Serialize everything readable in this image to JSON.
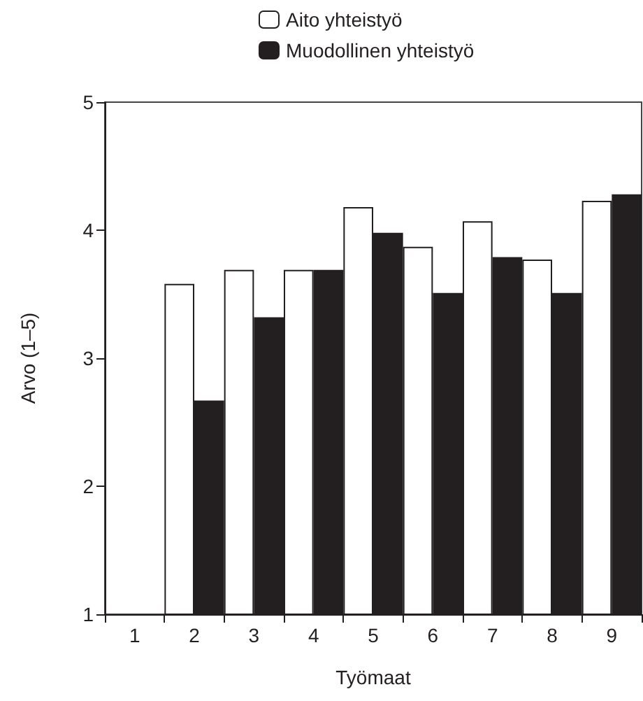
{
  "chart_data": {
    "type": "bar",
    "xlabel": "Työmaat",
    "ylabel": "Arvo (1–5)",
    "categories": [
      "1",
      "2",
      "3",
      "4",
      "5",
      "6",
      "7",
      "8",
      "9"
    ],
    "series": [
      {
        "name": "Aito yhteistyö",
        "color": "#ffffff",
        "values": [
          null,
          3.58,
          3.69,
          3.69,
          4.18,
          3.87,
          4.07,
          3.77,
          4.23
        ]
      },
      {
        "name": "Muodollinen yhteistyö",
        "color": "#231f20",
        "values": [
          null,
          2.67,
          3.32,
          3.69,
          3.98,
          3.51,
          3.79,
          3.51,
          4.28
        ]
      }
    ],
    "ylim": [
      1,
      5
    ],
    "yticks": [
      1,
      2,
      3,
      4,
      5
    ],
    "grid": false,
    "legend": "top"
  }
}
